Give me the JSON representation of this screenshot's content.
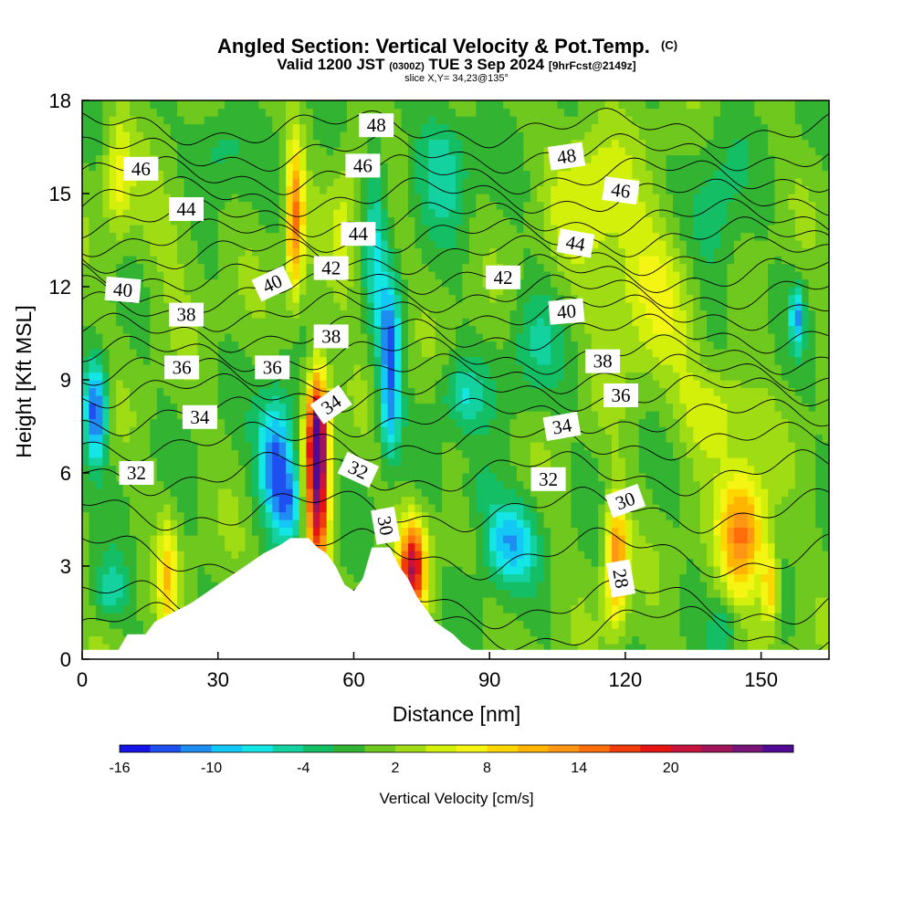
{
  "title": {
    "main": "Angled Section: Vertical Velocity & Pot.Temp.",
    "main_suffix": "(C)",
    "valid_prefix": "Valid 1200 JST",
    "valid_small": "(0300Z)",
    "valid_date": "TUE 3 Sep 2024",
    "valid_fcst": "[9hrFcst@2149z]",
    "slice": "slice X,Y= 34,23@135°"
  },
  "chart_data": {
    "type": "heatmap",
    "xlabel": "Distance [nm]",
    "ylabel": "Height [Kft MSL]",
    "xlim": [
      0,
      165
    ],
    "ylim": [
      0,
      18
    ],
    "xticks": [
      0,
      30,
      60,
      90,
      120,
      150
    ],
    "yticks": [
      0,
      3,
      6,
      9,
      12,
      15,
      18
    ],
    "colorbar": {
      "label": "Vertical Velocity [cm/s]",
      "ticks": [
        -16,
        -10,
        -4,
        2,
        8,
        14,
        20
      ],
      "min": -16,
      "step": 2,
      "colors": [
        "#1414e6",
        "#1e50f0",
        "#1e8cf0",
        "#14c8f5",
        "#14e6e6",
        "#14d2a0",
        "#14be64",
        "#32b432",
        "#6ec81e",
        "#a0dc14",
        "#d2f00a",
        "#f5f514",
        "#ffd700",
        "#ffb400",
        "#ff9614",
        "#ff6e0a",
        "#f03c0a",
        "#e61414",
        "#c8143c",
        "#a0145a",
        "#781478",
        "#500a96"
      ]
    },
    "wind_blobs": [
      {
        "x": 3,
        "y": 8.0,
        "rx": 2.5,
        "ry": 1.6,
        "w": -14
      },
      {
        "x": 6,
        "y": 2.2,
        "rx": 4,
        "ry": 1.0,
        "w": -6
      },
      {
        "x": 19,
        "y": 2.6,
        "rx": 2.2,
        "ry": 2.0,
        "w": 8
      },
      {
        "x": 43,
        "y": 6.4,
        "rx": 4,
        "ry": 2.0,
        "w": -14
      },
      {
        "x": 46,
        "y": 5.0,
        "rx": 3,
        "ry": 1.2,
        "w": -8
      },
      {
        "x": 52,
        "y": 5.8,
        "rx": 2.5,
        "ry": 3.2,
        "w": 24
      },
      {
        "x": 52,
        "y": 7.5,
        "rx": 2,
        "ry": 1.5,
        "w": 10
      },
      {
        "x": 68,
        "y": 10.2,
        "rx": 2.5,
        "ry": 2.0,
        "w": -12
      },
      {
        "x": 68,
        "y": 7.8,
        "rx": 2.2,
        "ry": 1.5,
        "w": -8
      },
      {
        "x": 73,
        "y": 3.0,
        "rx": 3,
        "ry": 1.5,
        "w": 20
      },
      {
        "x": 65,
        "y": 14.0,
        "rx": 2.5,
        "ry": 3.0,
        "w": -6
      },
      {
        "x": 47,
        "y": 14.2,
        "rx": 2,
        "ry": 2.5,
        "w": 14
      },
      {
        "x": 58,
        "y": 14.0,
        "rx": 3,
        "ry": 2.5,
        "w": 4
      },
      {
        "x": 94,
        "y": 3.8,
        "rx": 6,
        "ry": 1.3,
        "w": -10
      },
      {
        "x": 88,
        "y": 5.5,
        "rx": 4,
        "ry": 1.0,
        "w": -4
      },
      {
        "x": 118,
        "y": 3.2,
        "rx": 2.5,
        "ry": 2.0,
        "w": 14
      },
      {
        "x": 146,
        "y": 4.0,
        "rx": 5,
        "ry": 2.0,
        "w": 14
      },
      {
        "x": 152,
        "y": 2.3,
        "rx": 1.8,
        "ry": 1.2,
        "w": 10
      },
      {
        "x": 142,
        "y": 1.0,
        "rx": 3,
        "ry": 0.9,
        "w": -4
      },
      {
        "x": 140,
        "y": 8.0,
        "rx": 8,
        "ry": 1.5,
        "w": 6
      },
      {
        "x": 125,
        "y": 12.0,
        "rx": 10,
        "ry": 2.5,
        "w": 6
      },
      {
        "x": 140,
        "y": 14.0,
        "rx": 6,
        "ry": 3.0,
        "w": -4
      },
      {
        "x": 112,
        "y": 15.0,
        "rx": 8,
        "ry": 2.5,
        "w": 5
      },
      {
        "x": 80,
        "y": 16.0,
        "rx": 6,
        "ry": 2.0,
        "w": -6
      },
      {
        "x": 100,
        "y": 10.0,
        "rx": 6,
        "ry": 2.0,
        "w": -4
      },
      {
        "x": 158,
        "y": 11.0,
        "rx": 1.5,
        "ry": 1.0,
        "w": -10
      },
      {
        "x": 20,
        "y": 13.5,
        "rx": 8,
        "ry": 2.0,
        "w": 2
      },
      {
        "x": 8,
        "y": 15.5,
        "rx": 3,
        "ry": 2.0,
        "w": 6
      },
      {
        "x": 30,
        "y": 16.5,
        "rx": 6,
        "ry": 1.5,
        "w": -4
      },
      {
        "x": 84,
        "y": 8.5,
        "rx": 5,
        "ry": 1.2,
        "w": -6
      }
    ],
    "terrain": [
      [
        0,
        0.3
      ],
      [
        8,
        0.3
      ],
      [
        10,
        0.8
      ],
      [
        14,
        0.8
      ],
      [
        16,
        1.2
      ],
      [
        20,
        1.5
      ],
      [
        24,
        1.8
      ],
      [
        28,
        2.2
      ],
      [
        32,
        2.6
      ],
      [
        36,
        3.0
      ],
      [
        40,
        3.4
      ],
      [
        44,
        3.7
      ],
      [
        46,
        3.9
      ],
      [
        50,
        3.9
      ],
      [
        52,
        3.6
      ],
      [
        54,
        3.4
      ],
      [
        56,
        3.0
      ],
      [
        58,
        2.4
      ],
      [
        60,
        2.2
      ],
      [
        62,
        2.6
      ],
      [
        64,
        3.6
      ],
      [
        68,
        3.6
      ],
      [
        70,
        3.0
      ],
      [
        72,
        2.6
      ],
      [
        74,
        2.0
      ],
      [
        76,
        1.6
      ],
      [
        78,
        1.2
      ],
      [
        80,
        1.0
      ],
      [
        82,
        0.8
      ],
      [
        84,
        0.5
      ],
      [
        86,
        0.3
      ],
      [
        165,
        0.3
      ]
    ],
    "isotherms": [
      {
        "value": 28,
        "y": 1.0,
        "amp": 0.6
      },
      {
        "value": 29,
        "y": 1.8,
        "amp": 0.6
      },
      {
        "value": 30,
        "y": 3.4,
        "amp": 0.6
      },
      {
        "value": 31,
        "y": 4.8,
        "amp": 0.5
      },
      {
        "value": 32,
        "y": 6.0,
        "amp": 0.5
      },
      {
        "value": 33,
        "y": 7.0,
        "amp": 0.4
      },
      {
        "value": 34,
        "y": 7.8,
        "amp": 0.4
      },
      {
        "value": 35,
        "y": 8.6,
        "amp": 0.4
      },
      {
        "value": 36,
        "y": 9.2,
        "amp": 0.4
      },
      {
        "value": 37,
        "y": 9.8,
        "amp": 0.4
      },
      {
        "value": 38,
        "y": 10.5,
        "amp": 0.4
      },
      {
        "value": 39,
        "y": 11.2,
        "amp": 0.4
      },
      {
        "value": 40,
        "y": 11.8,
        "amp": 0.4
      },
      {
        "value": 41,
        "y": 12.4,
        "amp": 0.4
      },
      {
        "value": 42,
        "y": 13.0,
        "amp": 0.4
      },
      {
        "value": 43,
        "y": 13.6,
        "amp": 0.4
      },
      {
        "value": 44,
        "y": 14.2,
        "amp": 0.4
      },
      {
        "value": 45,
        "y": 14.9,
        "amp": 0.4
      },
      {
        "value": 46,
        "y": 15.6,
        "amp": 0.4
      },
      {
        "value": 47,
        "y": 16.3,
        "amp": 0.4
      },
      {
        "value": 48,
        "y": 17.1,
        "amp": 0.4
      }
    ],
    "contour_labels": [
      {
        "text": "48",
        "x": 65,
        "y": 17.2,
        "rot": 0
      },
      {
        "text": "48",
        "x": 107,
        "y": 16.2,
        "rot": 8
      },
      {
        "text": "46",
        "x": 13,
        "y": 15.8,
        "rot": 0
      },
      {
        "text": "46",
        "x": 62,
        "y": 15.9,
        "rot": 0
      },
      {
        "text": "46",
        "x": 119,
        "y": 15.1,
        "rot": -8
      },
      {
        "text": "44",
        "x": 23,
        "y": 14.5,
        "rot": 0
      },
      {
        "text": "44",
        "x": 61,
        "y": 13.7,
        "rot": 0
      },
      {
        "text": "44",
        "x": 109,
        "y": 13.4,
        "rot": -10
      },
      {
        "text": "42",
        "x": 55,
        "y": 12.6,
        "rot": 0
      },
      {
        "text": "42",
        "x": 93,
        "y": 12.3,
        "rot": 0
      },
      {
        "text": "40",
        "x": 9,
        "y": 11.9,
        "rot": -5
      },
      {
        "text": "40",
        "x": 42,
        "y": 12.1,
        "rot": 25
      },
      {
        "text": "40",
        "x": 107,
        "y": 11.2,
        "rot": 5
      },
      {
        "text": "38",
        "x": 23,
        "y": 11.1,
        "rot": 0
      },
      {
        "text": "38",
        "x": 55,
        "y": 10.4,
        "rot": 0
      },
      {
        "text": "38",
        "x": 115,
        "y": 9.6,
        "rot": 0
      },
      {
        "text": "36",
        "x": 22,
        "y": 9.4,
        "rot": 0
      },
      {
        "text": "36",
        "x": 42,
        "y": 9.4,
        "rot": 0
      },
      {
        "text": "36",
        "x": 119,
        "y": 8.5,
        "rot": 0
      },
      {
        "text": "34",
        "x": 26,
        "y": 7.8,
        "rot": 0
      },
      {
        "text": "34",
        "x": 55,
        "y": 8.2,
        "rot": 35
      },
      {
        "text": "34",
        "x": 106,
        "y": 7.5,
        "rot": 10
      },
      {
        "text": "32",
        "x": 12,
        "y": 6.0,
        "rot": 0
      },
      {
        "text": "32",
        "x": 61,
        "y": 6.1,
        "rot": -25
      },
      {
        "text": "32",
        "x": 103,
        "y": 5.8,
        "rot": 0
      },
      {
        "text": "30",
        "x": 67,
        "y": 4.3,
        "rot": -80
      },
      {
        "text": "30",
        "x": 120,
        "y": 5.1,
        "rot": 20
      },
      {
        "text": "28",
        "x": 119,
        "y": 2.6,
        "rot": -80
      }
    ]
  }
}
